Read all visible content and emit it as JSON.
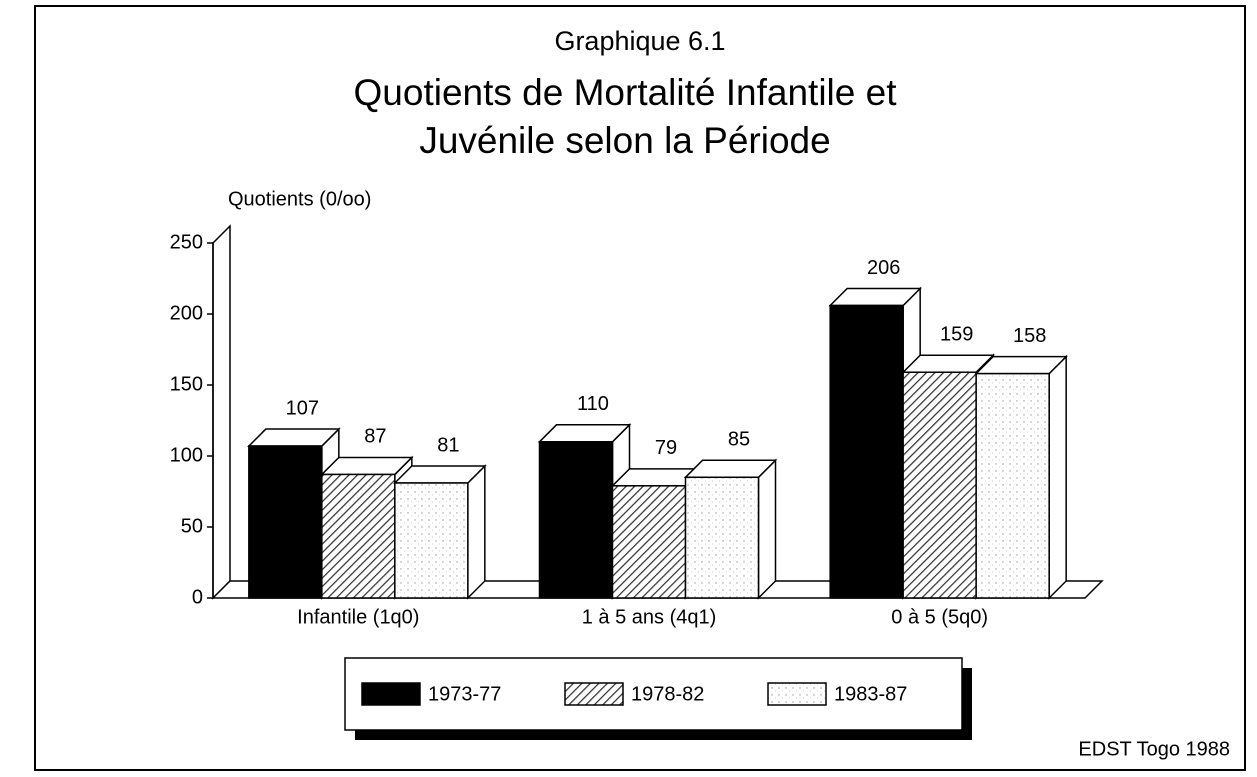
{
  "chart_data": {
    "type": "bar3d",
    "title": "Graphique 6.1",
    "subtitle": [
      "Quotients de Mortalité Infantile et",
      "Juvénile selon la Période"
    ],
    "y_label": "Quotients (0/oo)",
    "source": "EDST Togo 1988",
    "categories": [
      "Infantile (1q0)",
      "1 à 5 ans (4q1)",
      "0 à 5 (5q0)"
    ],
    "series": [
      {
        "name": "1973-77",
        "color": "#000000",
        "pattern": "solid",
        "values": [
          107,
          110,
          206
        ]
      },
      {
        "name": "1978-82",
        "color": "#444444",
        "pattern": "hatch",
        "values": [
          87,
          79,
          159
        ]
      },
      {
        "name": "1983-87",
        "color": "#bbbbbb",
        "pattern": "dots",
        "values": [
          81,
          85,
          158
        ]
      }
    ],
    "ylim": [
      0,
      250
    ],
    "yticks": [
      0,
      50,
      100,
      150,
      200,
      250
    ]
  }
}
